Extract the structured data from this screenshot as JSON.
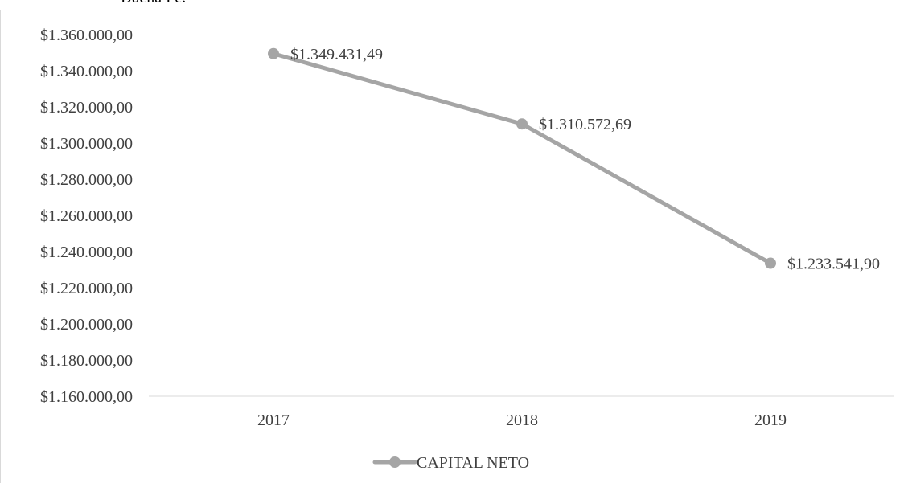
{
  "page": {
    "clipped_text": "Buena Fe."
  },
  "chart_data": {
    "type": "line",
    "title": "",
    "xlabel": "",
    "ylabel": "",
    "categories": [
      "2017",
      "2018",
      "2019"
    ],
    "series": [
      {
        "name": "CAPITAL NETO",
        "values": [
          1349431.49,
          1310572.69,
          1233541.9
        ],
        "labels": [
          "$1.349.431,49",
          "$1.310.572,69",
          "$1.233.541,90"
        ],
        "color": "#a5a5a5"
      }
    ],
    "ylim": [
      1160000,
      1360000
    ],
    "ytick_values": [
      1160000,
      1180000,
      1200000,
      1220000,
      1240000,
      1260000,
      1280000,
      1300000,
      1320000,
      1340000,
      1360000
    ],
    "ytick_labels": [
      "$1.160.000,00",
      "$1.180.000,00",
      "$1.200.000,00",
      "$1.220.000,00",
      "$1.240.000,00",
      "$1.260.000,00",
      "$1.280.000,00",
      "$1.300.000,00",
      "$1.320.000,00",
      "$1.340.000,00",
      "$1.360.000,00"
    ],
    "grid": false,
    "legend_position": "bottom",
    "axis_color": "#d9d9d9",
    "text_color": "#404040"
  }
}
